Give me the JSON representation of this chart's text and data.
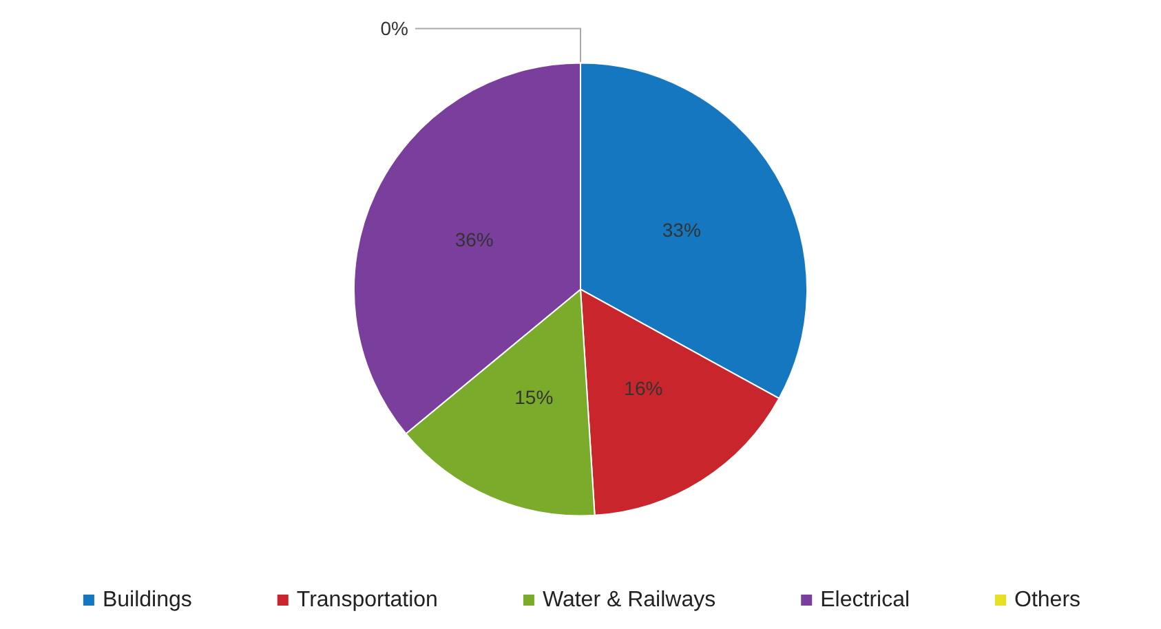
{
  "chart_data": {
    "type": "pie",
    "categories": [
      "Buildings",
      "Transportation",
      "Water & Railways",
      "Electrical",
      "Others"
    ],
    "values": [
      33,
      16,
      15,
      36,
      0
    ],
    "value_labels": [
      "33%",
      "16%",
      "15%",
      "36%",
      "0%"
    ],
    "colors": [
      "#1577c0",
      "#c8262c",
      "#7aab2a",
      "#7a3f9c",
      "#e6e020"
    ],
    "legend": "bottom"
  }
}
